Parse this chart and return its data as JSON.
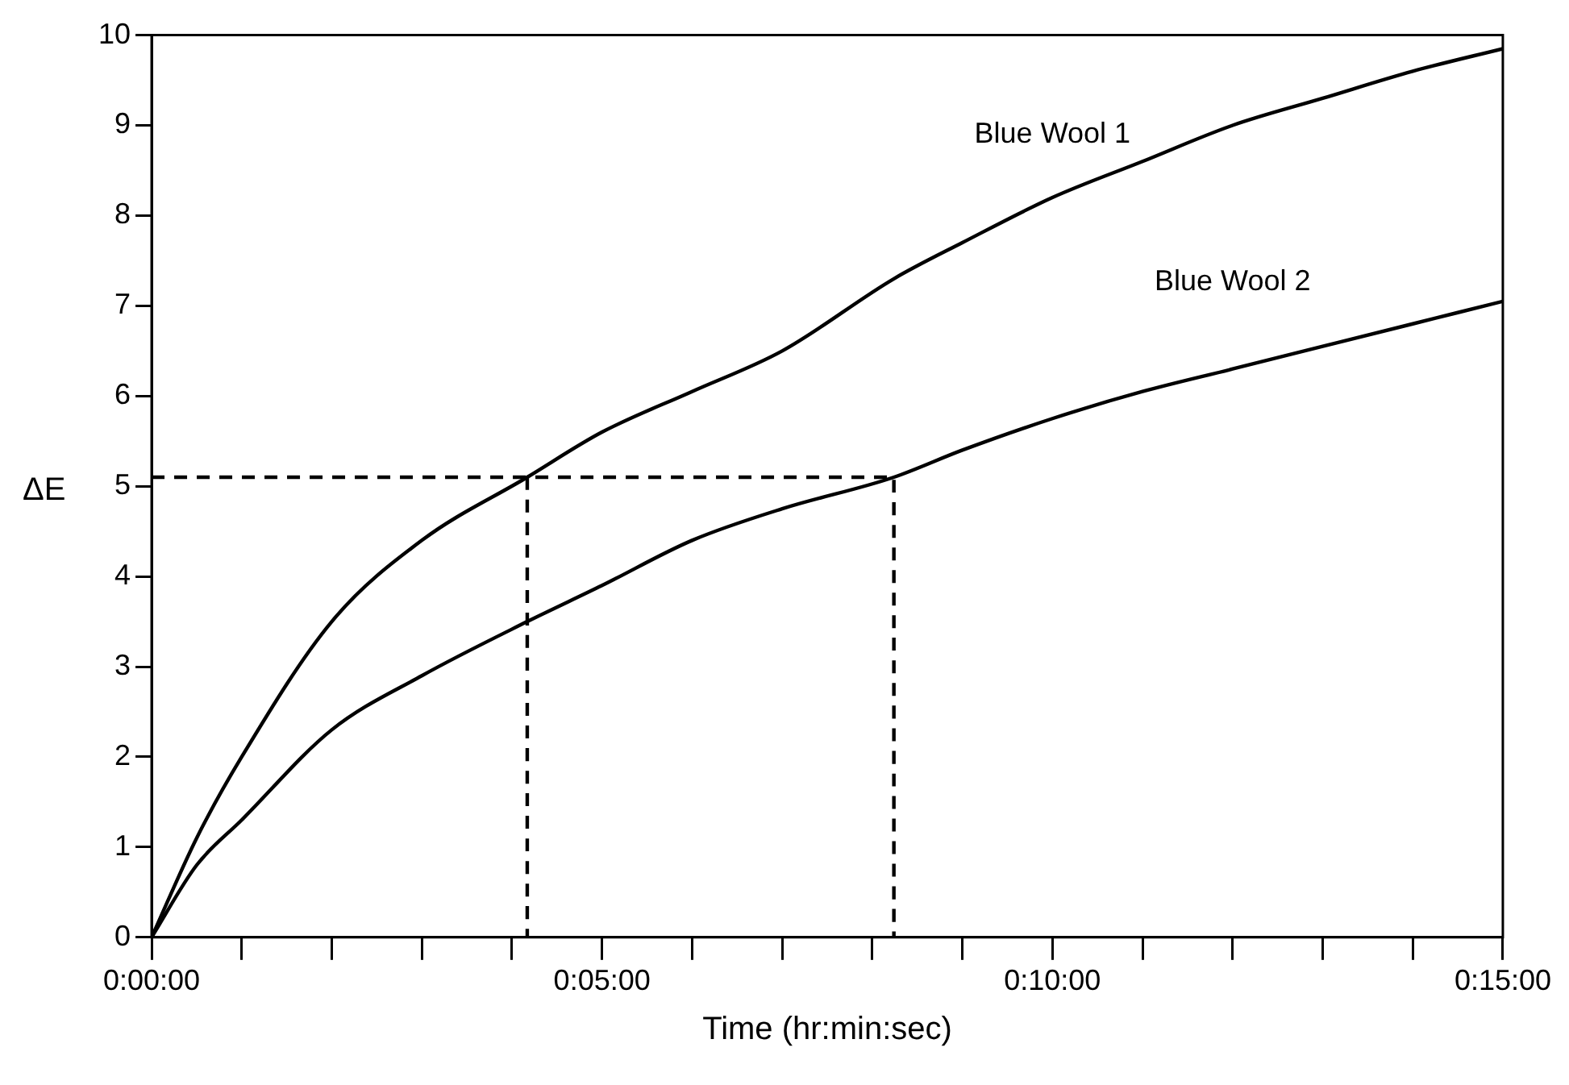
{
  "chart_data": {
    "type": "line",
    "xlabel": "Time (hr:min:sec)",
    "ylabel": "ΔE",
    "xlim": [
      0,
      15
    ],
    "xticks": [
      {
        "value": 0,
        "label": "0:00:00"
      },
      {
        "value": 1,
        "label": null
      },
      {
        "value": 2,
        "label": null
      },
      {
        "value": 3,
        "label": null
      },
      {
        "value": 4,
        "label": null
      },
      {
        "value": 5,
        "label": "0:05:00"
      },
      {
        "value": 6,
        "label": null
      },
      {
        "value": 7,
        "label": null
      },
      {
        "value": 8,
        "label": null
      },
      {
        "value": 9,
        "label": null
      },
      {
        "value": 10,
        "label": "0:10:00"
      },
      {
        "value": 11,
        "label": null
      },
      {
        "value": 12,
        "label": null
      },
      {
        "value": 13,
        "label": null
      },
      {
        "value": 14,
        "label": null
      },
      {
        "value": 15,
        "label": "0:15:00"
      }
    ],
    "ylim": [
      0,
      10
    ],
    "yticks": [
      0,
      1,
      2,
      3,
      4,
      5,
      6,
      7,
      8,
      9,
      10
    ],
    "grid": false,
    "legend": false,
    "marker": "none",
    "series": [
      {
        "name": "Blue Wool 1",
        "color": "#000000",
        "line_style": "solid",
        "x": [
          0,
          0.5,
          1,
          2,
          3,
          4.17,
          5,
          6,
          7,
          8.24,
          9,
          10,
          11,
          12,
          13,
          14,
          15
        ],
        "values": [
          0,
          1.1,
          2,
          3.5,
          4.4,
          5.1,
          5.6,
          6.05,
          6.5,
          7.3,
          7.7,
          8.2,
          8.6,
          9.0,
          9.3,
          9.6,
          9.85
        ]
      },
      {
        "name": "Blue Wool 2",
        "color": "#000000",
        "line_style": "solid",
        "x": [
          0,
          0.5,
          1,
          2,
          3,
          4.17,
          5,
          6,
          7,
          8.24,
          9,
          10,
          11,
          12,
          13,
          14,
          15
        ],
        "values": [
          0,
          0.8,
          1.3,
          2.3,
          2.9,
          3.5,
          3.9,
          4.4,
          4.75,
          5.1,
          5.4,
          5.75,
          6.05,
          6.3,
          6.55,
          6.8,
          7.05
        ]
      },
      {
        "color": "#000000",
        "line_style": "dashed",
        "x": [
          0,
          8.24,
          8.24
        ],
        "values": [
          5.1,
          5.1,
          0
        ]
      },
      {
        "color": "#000000",
        "line_style": "dashed",
        "x": [
          4.17,
          4.17
        ],
        "values": [
          5.1,
          0
        ]
      }
    ]
  }
}
